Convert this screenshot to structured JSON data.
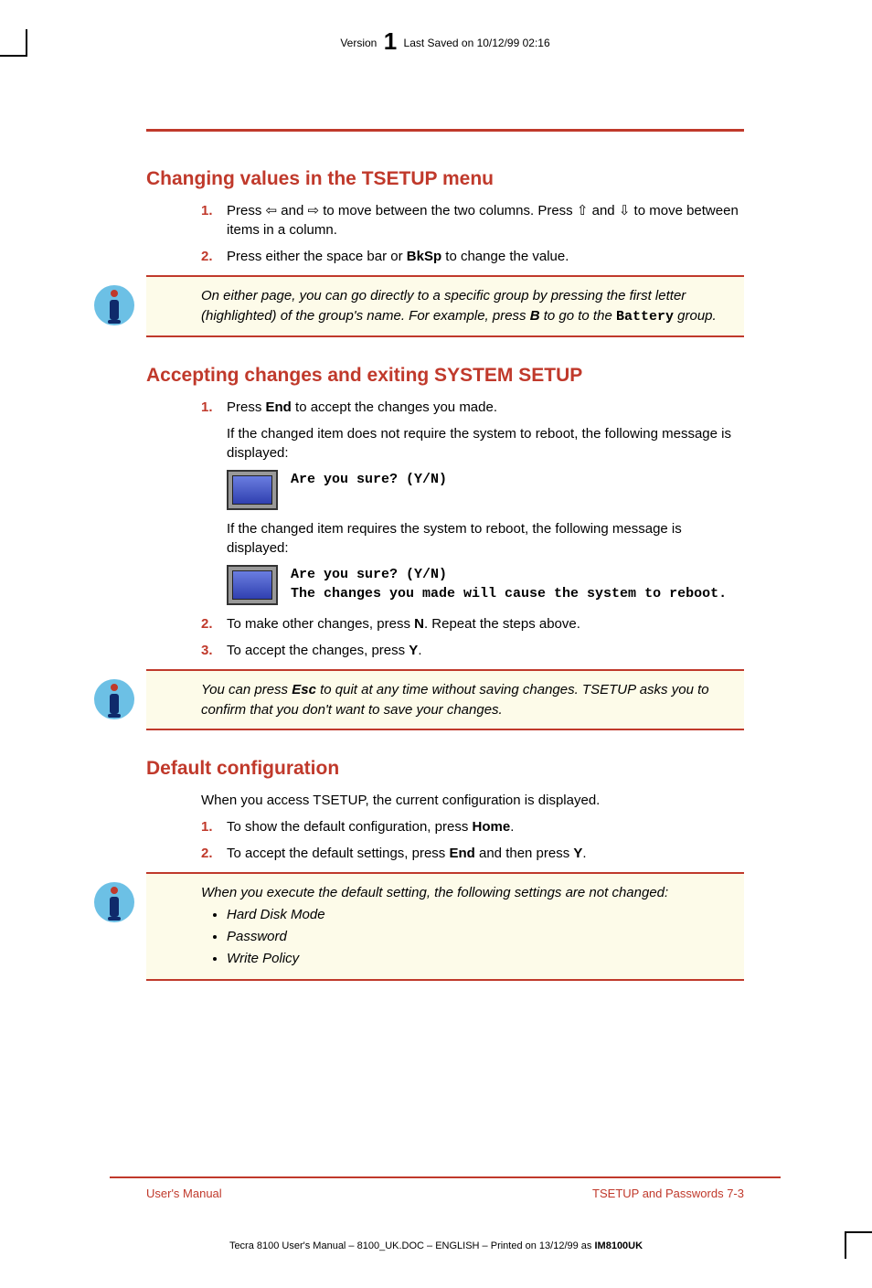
{
  "header": {
    "prefix": "Version",
    "version": "1",
    "saved": "Last Saved on 10/12/99 02:16"
  },
  "section1": {
    "title": "Changing values in the TSETUP menu",
    "steps": [
      {
        "n": "1.",
        "html": "Press <span class='arrow'>⇦</span> and <span class='arrow'>⇨</span> to move between the two columns. Press <span class='arrow'>⇧</span> and <span class='arrow'>⇩</span> to move between items in a column."
      },
      {
        "n": "2.",
        "html": "Press either the space bar or <b>BkSp</b> to change the value."
      }
    ],
    "tip": "On either page, you can go directly to a specific group by pressing the first letter (highlighted) of the group's name. For example, press <b>B</b> to go to the <span class='mono' style='font-style:normal'>Battery</span> group."
  },
  "section2": {
    "title": "Accepting changes and exiting SYSTEM SETUP",
    "steps1": [
      {
        "n": "1.",
        "html": "Press <b>End</b> to accept the changes you made."
      }
    ],
    "after1a": "If the changed item does not require the system to reboot, the following message is displayed:",
    "msg1": "Are you sure? (Y/N)",
    "after1b": "If the changed item requires the system to reboot, the following message is displayed:",
    "msg2a": "Are you sure? (Y/N)",
    "msg2b": "The changes you made will cause the system to reboot.",
    "steps2": [
      {
        "n": "2.",
        "html": "To make other changes, press <b>N</b>. Repeat the steps above."
      },
      {
        "n": "3.",
        "html": "To accept the changes, press <b>Y</b>."
      }
    ],
    "tip": "You can press <b>Esc</b> to quit at any time without saving changes. TSETUP asks you to confirm that you don't want to save your changes."
  },
  "section3": {
    "title": "Default configuration",
    "intro": "When you access TSETUP, the current configuration is displayed.",
    "steps": [
      {
        "n": "1.",
        "html": "To show the default configuration, press <b>Home</b>."
      },
      {
        "n": "2.",
        "html": "To accept the default settings, press <b>End</b> and then press <b>Y</b>."
      }
    ],
    "tip_intro": "When you execute the default setting, the following settings are not changed:",
    "tip_items": [
      "Hard Disk Mode",
      "Password",
      "Write Policy"
    ]
  },
  "footer": {
    "left": "User's Manual",
    "right": "TSETUP and Passwords  7-3"
  },
  "print": "Tecra 8100 User's Manual  – 8100_UK.DOC – ENGLISH – Printed on 13/12/99 as <b>IM8100UK</b>"
}
